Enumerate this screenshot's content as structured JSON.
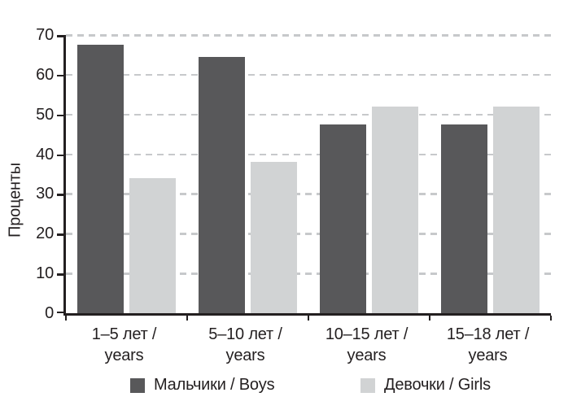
{
  "style": {
    "background": "#ffffff",
    "text_color": "#231f20",
    "axis_color": "#231f20",
    "gridline_color": "#c7c9cb"
  },
  "chart_data": {
    "type": "bar",
    "title": "",
    "xlabel": "",
    "ylabel": "Проценты",
    "ylim": [
      0,
      70
    ],
    "yticks": [
      0,
      10,
      20,
      30,
      40,
      50,
      60,
      70
    ],
    "grid": "horizontal-dashed",
    "legend_position": "bottom",
    "categories": [
      "1–5 лет /",
      "5–10 лет /",
      "10–15 лет /",
      "15–18 лет /"
    ],
    "category_second_line": "years",
    "series": [
      {
        "name": "Мальчики / Boys",
        "color": "#58585a",
        "values": [
          67.5,
          64.5,
          47.5,
          47.5
        ]
      },
      {
        "name": "Девочки / Girls",
        "color": "#d1d3d4",
        "values": [
          34,
          38,
          52,
          52
        ]
      }
    ]
  }
}
